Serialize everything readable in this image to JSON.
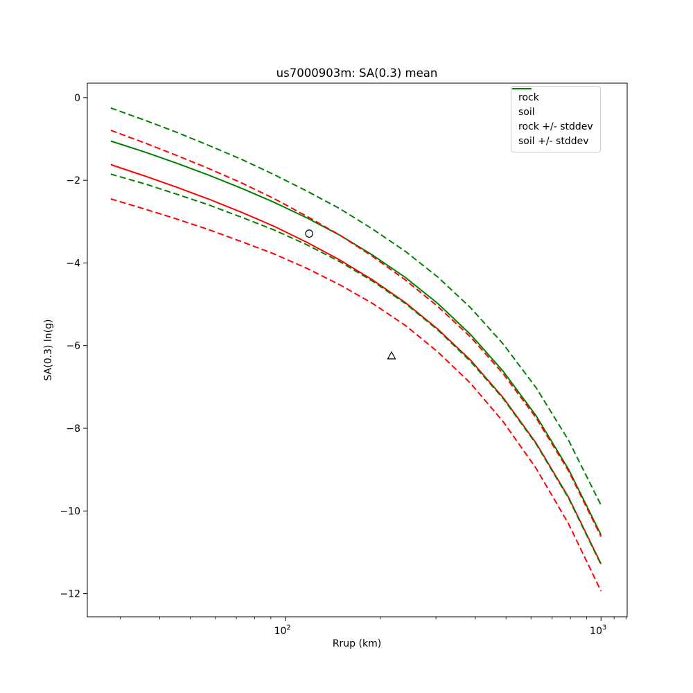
{
  "figure": {
    "background_color": "#ffffff",
    "text_color": "#000000",
    "legend_border_color": "#cbcbcb"
  },
  "chart_data": {
    "type": "line",
    "title": "us7000903m: SA(0.3) mean",
    "xlabel": "Rrup (km)",
    "ylabel": "SA(0.3) ln(g)",
    "x_scale": "log",
    "y_scale": "linear",
    "xlim": [
      23.6,
      1210
    ],
    "ylim": [
      -12.56,
      0.35
    ],
    "grid": false,
    "legend_position": "upper right",
    "x_ticks": {
      "major": [
        {
          "value": 100,
          "base": "10",
          "exponent": "2"
        },
        {
          "value": 1000,
          "base": "10",
          "exponent": "3"
        }
      ],
      "minor": [
        30,
        40,
        50,
        60,
        70,
        80,
        90,
        200,
        300,
        400,
        500,
        600,
        700,
        800,
        900,
        1100,
        1200
      ]
    },
    "y_ticks": [
      {
        "value": 0,
        "label": "0"
      },
      {
        "value": -2,
        "label": "−2"
      },
      {
        "value": -4,
        "label": "−4"
      },
      {
        "value": -6,
        "label": "−6"
      },
      {
        "value": -8,
        "label": "−8"
      },
      {
        "value": -10,
        "label": "−10"
      },
      {
        "value": -12,
        "label": "−12"
      }
    ],
    "x": [
      28,
      36,
      45,
      57,
      73,
      92,
      117,
      149,
      189,
      240,
      304,
      386,
      490,
      622,
      789,
      1000
    ],
    "series": [
      {
        "id": "rock-mean",
        "label": "rock",
        "color": "#ff0000",
        "style": "solid",
        "values": [
          -1.62,
          -1.9,
          -2.16,
          -2.45,
          -2.78,
          -3.11,
          -3.5,
          -3.93,
          -4.41,
          -4.96,
          -5.6,
          -6.35,
          -7.26,
          -8.35,
          -9.67,
          -11.28
        ]
      },
      {
        "id": "soil-mean",
        "label": "soil",
        "color": "#008000",
        "style": "solid",
        "values": [
          -1.05,
          -1.32,
          -1.58,
          -1.87,
          -2.2,
          -2.53,
          -2.91,
          -3.33,
          -3.81,
          -4.35,
          -4.98,
          -5.73,
          -6.62,
          -7.69,
          -8.99,
          -10.58
        ]
      },
      {
        "id": "rock-plus-stddev",
        "label": "rock +/- stddev",
        "color": "#ff0000",
        "style": "dashed",
        "values": [
          -0.79,
          -1.1,
          -1.39,
          -1.71,
          -2.07,
          -2.44,
          -2.87,
          -3.33,
          -3.84,
          -4.41,
          -5.05,
          -5.79,
          -6.68,
          -7.74,
          -9.03,
          -10.62
        ]
      },
      {
        "id": "rock-minus-stddev",
        "label": "rock +/- stddev",
        "color": "#ff0000",
        "style": "dashed",
        "values": [
          -2.45,
          -2.7,
          -2.93,
          -3.19,
          -3.49,
          -3.78,
          -4.13,
          -4.53,
          -4.98,
          -5.51,
          -6.15,
          -6.91,
          -7.84,
          -8.96,
          -10.31,
          -11.94
        ]
      },
      {
        "id": "soil-plus-stddev",
        "label": "soil +/- stddev",
        "color": "#008000",
        "style": "dashed",
        "values": [
          -0.25,
          -0.55,
          -0.83,
          -1.15,
          -1.5,
          -1.86,
          -2.26,
          -2.69,
          -3.18,
          -3.72,
          -4.34,
          -5.08,
          -5.96,
          -7.01,
          -8.29,
          -9.86
        ]
      },
      {
        "id": "soil-minus-stddev",
        "label": "soil +/- stddev",
        "color": "#008000",
        "style": "dashed",
        "values": [
          -1.85,
          -2.09,
          -2.33,
          -2.59,
          -2.9,
          -3.2,
          -3.56,
          -3.97,
          -4.44,
          -4.98,
          -5.62,
          -6.38,
          -7.28,
          -8.37,
          -9.69,
          -11.3
        ]
      }
    ],
    "markers": [
      {
        "id": "observation-circle",
        "shape": "circle",
        "x": 119,
        "y": -3.29
      },
      {
        "id": "observation-triangle",
        "shape": "triangle",
        "x": 217,
        "y": -6.25
      }
    ]
  },
  "legend": {
    "items": [
      {
        "label": "rock",
        "color": "#ff0000",
        "style": "solid"
      },
      {
        "label": "soil",
        "color": "#008000",
        "style": "solid"
      },
      {
        "label": "rock +/- stddev",
        "color": "#ff0000",
        "style": "dashed"
      },
      {
        "label": "soil +/- stddev",
        "color": "#008000",
        "style": "dashed"
      }
    ]
  }
}
